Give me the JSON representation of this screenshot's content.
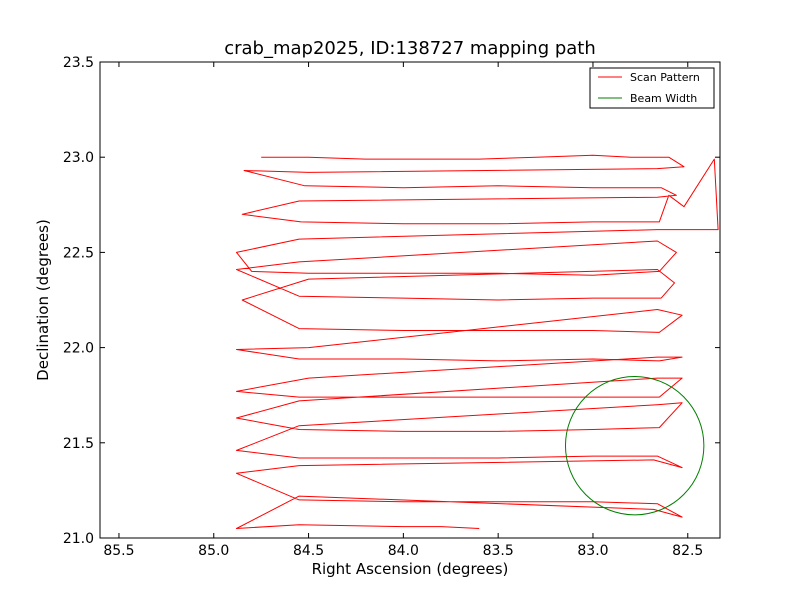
{
  "chart_data": {
    "type": "line",
    "title": "crab_map2025, ID:138727 mapping path",
    "xlabel": "Right Ascension (degrees)",
    "ylabel": "Declination (degrees)",
    "xlim": [
      85.6,
      82.33
    ],
    "ylim": [
      21.0,
      23.5
    ],
    "x_inverted": true,
    "x_ticks": [
      85.5,
      85.0,
      84.5,
      84.0,
      83.5,
      83.0,
      82.5
    ],
    "x_tick_labels": [
      "85.5",
      "85.0",
      "84.5",
      "84.0",
      "83.5",
      "83.0",
      "82.5"
    ],
    "y_ticks": [
      21.0,
      21.5,
      22.0,
      22.5,
      23.0,
      23.5
    ],
    "y_tick_labels": [
      "21.0",
      "21.5",
      "22.0",
      "22.5",
      "23.0",
      "23.5"
    ],
    "grid": false,
    "legend": {
      "position": "top-right",
      "entries": [
        {
          "label": "Scan Pattern",
          "color": "#ff0000",
          "style": "line"
        },
        {
          "label": "Beam Width",
          "color": "#007f00",
          "style": "line"
        }
      ]
    },
    "series": [
      {
        "name": "Scan Pattern",
        "color": "#ff0000",
        "x": [
          84.75,
          84.5,
          84.2,
          83.9,
          83.6,
          83.3,
          83.0,
          82.8,
          82.63,
          82.6,
          82.52,
          82.66,
          84.5,
          84.84,
          84.52,
          84.0,
          83.5,
          83.0,
          82.64,
          82.56,
          82.66,
          84.55,
          84.85,
          84.54,
          84.0,
          83.5,
          83.0,
          82.65,
          82.6,
          82.52,
          82.36,
          82.34,
          82.66,
          84.55,
          84.88,
          84.8,
          84.5,
          84.0,
          83.5,
          83.0,
          82.65,
          82.56,
          82.66,
          84.55,
          84.88,
          84.55,
          84.0,
          83.5,
          83.0,
          82.64,
          82.57,
          82.66,
          84.5,
          84.85,
          84.55,
          84.0,
          83.5,
          83.0,
          82.65,
          82.53,
          82.66,
          84.5,
          84.88,
          84.55,
          84.0,
          83.5,
          83.0,
          82.65,
          82.53,
          82.66,
          84.5,
          84.88,
          84.55,
          84.0,
          83.5,
          83.0,
          82.65,
          82.53,
          82.66,
          84.55,
          84.88,
          84.55,
          84.0,
          83.5,
          83.0,
          82.65,
          82.53,
          82.66,
          84.55,
          84.88,
          84.55,
          84.0,
          83.5,
          83.0,
          82.66,
          82.53,
          82.68,
          84.55,
          84.88,
          84.55,
          84.0,
          83.5,
          83.0,
          82.66,
          82.53,
          82.68,
          84.55,
          84.88,
          84.55,
          84.0,
          83.8,
          83.6
        ],
        "y": [
          23.0,
          23.0,
          22.99,
          22.99,
          22.99,
          23.0,
          23.01,
          23.0,
          23.0,
          23.0,
          22.95,
          22.94,
          22.92,
          22.93,
          22.85,
          22.84,
          22.85,
          22.84,
          22.84,
          22.8,
          22.79,
          22.77,
          22.7,
          22.66,
          22.65,
          22.65,
          22.66,
          22.66,
          22.8,
          22.74,
          22.99,
          22.62,
          22.62,
          22.57,
          22.5,
          22.4,
          22.39,
          22.39,
          22.39,
          22.38,
          22.4,
          22.5,
          22.56,
          22.45,
          22.41,
          22.27,
          22.26,
          22.25,
          22.26,
          22.26,
          22.34,
          22.41,
          22.36,
          22.25,
          22.1,
          22.09,
          22.09,
          22.09,
          22.08,
          22.17,
          22.2,
          22.0,
          21.99,
          21.94,
          21.94,
          21.93,
          21.94,
          21.93,
          21.95,
          21.95,
          21.84,
          21.77,
          21.74,
          21.74,
          21.74,
          21.74,
          21.74,
          21.84,
          21.84,
          21.72,
          21.63,
          21.57,
          21.56,
          21.56,
          21.57,
          21.58,
          21.71,
          21.7,
          21.59,
          21.46,
          21.42,
          21.42,
          21.42,
          21.43,
          21.43,
          21.37,
          21.41,
          21.38,
          21.34,
          21.2,
          21.19,
          21.19,
          21.19,
          21.18,
          21.11,
          21.15,
          21.22,
          21.05,
          21.07,
          21.06,
          21.06,
          21.05
        ]
      },
      {
        "name": "Beam Width",
        "color": "#007f00",
        "shape": "circle",
        "center": [
          82.78,
          21.485
        ],
        "radius_deg": 0.365
      }
    ]
  }
}
